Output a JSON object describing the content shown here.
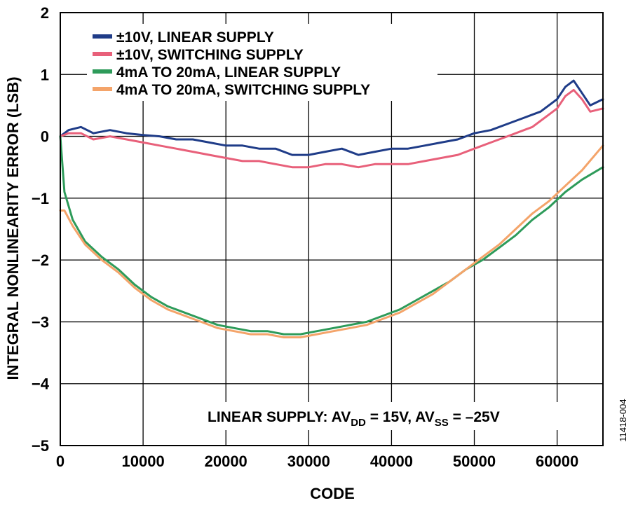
{
  "chart_data": {
    "type": "line",
    "title": "",
    "xlabel": "CODE",
    "ylabel": "INTEGRAL NONLINEARITY ERROR (LSB)",
    "xlim": [
      0,
      65535
    ],
    "ylim": [
      -5,
      2
    ],
    "x_ticks": [
      0,
      10000,
      20000,
      30000,
      40000,
      50000,
      60000
    ],
    "y_ticks": [
      2,
      1,
      0,
      -1,
      -2,
      -3,
      -4,
      -5
    ],
    "grid": true,
    "legend_position": "top-left",
    "annotation": {
      "prefix": "LINEAR SUPPLY: AV",
      "sub1": "DD",
      "mid": " = 15V, AV",
      "sub2": "SS",
      "suffix": " = –25V"
    },
    "figure_id": "11418-004",
    "series": [
      {
        "name": "±10V, LINEAR SUPPLY",
        "color": "#1f3c88",
        "x": [
          0,
          1000,
          2500,
          4000,
          6000,
          8000,
          10000,
          12000,
          14000,
          16000,
          18000,
          20000,
          22000,
          24000,
          26000,
          28000,
          30000,
          32000,
          34000,
          36000,
          38000,
          40000,
          42000,
          44000,
          46000,
          48000,
          50000,
          52000,
          54000,
          56000,
          57000,
          58000,
          59000,
          60000,
          61000,
          62000,
          63000,
          64000,
          65535
        ],
        "y": [
          0.0,
          0.1,
          0.15,
          0.05,
          0.1,
          0.05,
          0.02,
          0.0,
          -0.05,
          -0.05,
          -0.1,
          -0.15,
          -0.15,
          -0.2,
          -0.2,
          -0.3,
          -0.3,
          -0.25,
          -0.2,
          -0.3,
          -0.25,
          -0.2,
          -0.2,
          -0.15,
          -0.1,
          -0.05,
          0.05,
          0.1,
          0.2,
          0.3,
          0.35,
          0.4,
          0.5,
          0.6,
          0.8,
          0.9,
          0.7,
          0.5,
          0.6
        ]
      },
      {
        "name": "±10V, SWITCHING SUPPLY",
        "color": "#e8607a",
        "x": [
          0,
          1000,
          2500,
          4000,
          6000,
          8000,
          10000,
          12000,
          14000,
          16000,
          18000,
          20000,
          22000,
          24000,
          26000,
          28000,
          30000,
          32000,
          34000,
          36000,
          38000,
          40000,
          42000,
          44000,
          46000,
          48000,
          50000,
          52000,
          54000,
          56000,
          57000,
          58000,
          59000,
          60000,
          61000,
          62000,
          63000,
          64000,
          65535
        ],
        "y": [
          0.0,
          0.05,
          0.05,
          -0.05,
          0.0,
          -0.05,
          -0.1,
          -0.15,
          -0.2,
          -0.25,
          -0.3,
          -0.35,
          -0.4,
          -0.4,
          -0.45,
          -0.5,
          -0.5,
          -0.45,
          -0.45,
          -0.5,
          -0.45,
          -0.45,
          -0.45,
          -0.4,
          -0.35,
          -0.3,
          -0.2,
          -0.1,
          0.0,
          0.1,
          0.15,
          0.25,
          0.35,
          0.45,
          0.65,
          0.75,
          0.6,
          0.4,
          0.45
        ]
      },
      {
        "name": "4mA TO 20mA, LINEAR SUPPLY",
        "color": "#2e9b5a",
        "x": [
          0,
          500,
          1500,
          3000,
          5000,
          7000,
          9000,
          11000,
          13000,
          15000,
          17000,
          19000,
          21000,
          23000,
          25000,
          27000,
          29000,
          31000,
          33000,
          35000,
          37000,
          39000,
          41000,
          43000,
          45000,
          47000,
          49000,
          51000,
          53000,
          55000,
          57000,
          59000,
          61000,
          63000,
          65535
        ],
        "y": [
          0.0,
          -0.9,
          -1.35,
          -1.7,
          -1.95,
          -2.15,
          -2.4,
          -2.6,
          -2.75,
          -2.85,
          -2.95,
          -3.05,
          -3.1,
          -3.15,
          -3.15,
          -3.2,
          -3.2,
          -3.15,
          -3.1,
          -3.05,
          -3.0,
          -2.9,
          -2.8,
          -2.65,
          -2.5,
          -2.35,
          -2.15,
          -2.0,
          -1.8,
          -1.6,
          -1.35,
          -1.15,
          -0.9,
          -0.7,
          -0.5
        ]
      },
      {
        "name": "4mA TO 20mA, SWITCHING SUPPLY",
        "color": "#f4a46a",
        "x": [
          0,
          500,
          1500,
          3000,
          5000,
          7000,
          9000,
          11000,
          13000,
          15000,
          17000,
          19000,
          21000,
          23000,
          25000,
          27000,
          29000,
          31000,
          33000,
          35000,
          37000,
          39000,
          41000,
          43000,
          45000,
          47000,
          49000,
          51000,
          53000,
          55000,
          57000,
          59000,
          61000,
          63000,
          65535
        ],
        "y": [
          -1.2,
          -1.2,
          -1.45,
          -1.75,
          -2.0,
          -2.2,
          -2.45,
          -2.65,
          -2.8,
          -2.9,
          -3.0,
          -3.1,
          -3.15,
          -3.2,
          -3.2,
          -3.25,
          -3.25,
          -3.2,
          -3.15,
          -3.1,
          -3.05,
          -2.95,
          -2.85,
          -2.7,
          -2.55,
          -2.35,
          -2.15,
          -1.95,
          -1.75,
          -1.5,
          -1.25,
          -1.05,
          -0.8,
          -0.55,
          -0.15
        ]
      }
    ]
  }
}
